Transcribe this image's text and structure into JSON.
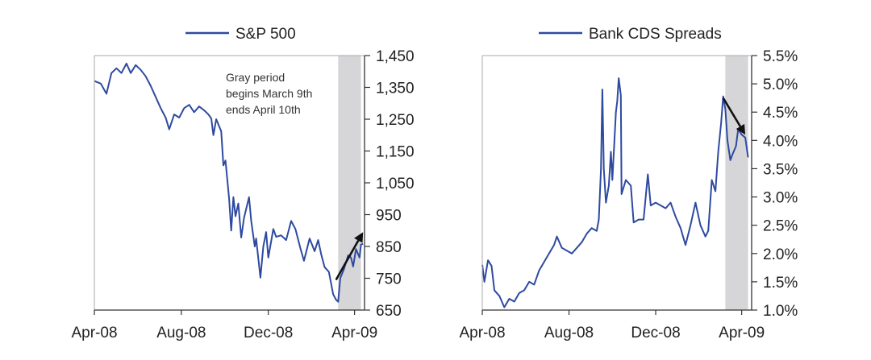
{
  "colors": {
    "line": "#2e4aa0",
    "axis": "#333333",
    "shade": "#d6d6d8",
    "text": "#222222",
    "arrow": "#111111"
  },
  "chart_data": [
    {
      "type": "line",
      "title": "",
      "xlabel": "",
      "ylabel": "",
      "grid": false,
      "legend_position": "top",
      "x_tick_labels": [
        "Apr-08",
        "Aug-08",
        "Dec-08",
        "Apr-09"
      ],
      "y_tick_labels": [
        "1,450",
        "1,350",
        "1,250",
        "1,150",
        "1,050",
        "950",
        "850",
        "750",
        "650"
      ],
      "y_ticks": [
        1450,
        1350,
        1250,
        1150,
        1050,
        950,
        850,
        750,
        650
      ],
      "ylim": [
        650,
        1450
      ],
      "xlim": [
        "2008-04-01",
        "2009-04-15"
      ],
      "shaded_period": {
        "start": "2009-03-09",
        "end": "2009-04-10"
      },
      "annotation": {
        "lines": [
          "Gray period",
          "begins March 9th",
          "ends April 10th"
        ]
      },
      "arrow": {
        "from": {
          "x": "2009-03-06",
          "y": 745
        },
        "to": {
          "x": "2009-04-13",
          "y": 895
        },
        "direction": "up"
      },
      "series": [
        {
          "name": "S&P 500",
          "points": [
            {
              "x": "2008-04-01",
              "y": 1370
            },
            {
              "x": "2008-04-10",
              "y": 1362
            },
            {
              "x": "2008-04-18",
              "y": 1330
            },
            {
              "x": "2008-04-25",
              "y": 1395
            },
            {
              "x": "2008-05-02",
              "y": 1410
            },
            {
              "x": "2008-05-09",
              "y": 1395
            },
            {
              "x": "2008-05-16",
              "y": 1425
            },
            {
              "x": "2008-05-22",
              "y": 1395
            },
            {
              "x": "2008-05-29",
              "y": 1420
            },
            {
              "x": "2008-06-05",
              "y": 1405
            },
            {
              "x": "2008-06-12",
              "y": 1385
            },
            {
              "x": "2008-06-19",
              "y": 1355
            },
            {
              "x": "2008-06-26",
              "y": 1320
            },
            {
              "x": "2008-07-03",
              "y": 1285
            },
            {
              "x": "2008-07-10",
              "y": 1255
            },
            {
              "x": "2008-07-15",
              "y": 1218
            },
            {
              "x": "2008-07-22",
              "y": 1265
            },
            {
              "x": "2008-07-29",
              "y": 1255
            },
            {
              "x": "2008-08-05",
              "y": 1285
            },
            {
              "x": "2008-08-12",
              "y": 1295
            },
            {
              "x": "2008-08-19",
              "y": 1272
            },
            {
              "x": "2008-08-26",
              "y": 1290
            },
            {
              "x": "2008-09-02",
              "y": 1278
            },
            {
              "x": "2008-09-08",
              "y": 1265
            },
            {
              "x": "2008-09-12",
              "y": 1252
            },
            {
              "x": "2008-09-15",
              "y": 1200
            },
            {
              "x": "2008-09-19",
              "y": 1250
            },
            {
              "x": "2008-09-26",
              "y": 1212
            },
            {
              "x": "2008-09-29",
              "y": 1105
            },
            {
              "x": "2008-10-02",
              "y": 1120
            },
            {
              "x": "2008-10-07",
              "y": 1000
            },
            {
              "x": "2008-10-10",
              "y": 900
            },
            {
              "x": "2008-10-13",
              "y": 1005
            },
            {
              "x": "2008-10-16",
              "y": 945
            },
            {
              "x": "2008-10-20",
              "y": 985
            },
            {
              "x": "2008-10-24",
              "y": 878
            },
            {
              "x": "2008-10-28",
              "y": 940
            },
            {
              "x": "2008-11-04",
              "y": 1005
            },
            {
              "x": "2008-11-07",
              "y": 930
            },
            {
              "x": "2008-11-12",
              "y": 850
            },
            {
              "x": "2008-11-14",
              "y": 875
            },
            {
              "x": "2008-11-20",
              "y": 752
            },
            {
              "x": "2008-11-24",
              "y": 850
            },
            {
              "x": "2008-11-28",
              "y": 895
            },
            {
              "x": "2008-12-01",
              "y": 815
            },
            {
              "x": "2008-12-08",
              "y": 905
            },
            {
              "x": "2008-12-12",
              "y": 880
            },
            {
              "x": "2008-12-19",
              "y": 885
            },
            {
              "x": "2008-12-26",
              "y": 870
            },
            {
              "x": "2009-01-02",
              "y": 930
            },
            {
              "x": "2009-01-08",
              "y": 905
            },
            {
              "x": "2009-01-15",
              "y": 845
            },
            {
              "x": "2009-01-20",
              "y": 805
            },
            {
              "x": "2009-01-28",
              "y": 875
            },
            {
              "x": "2009-02-04",
              "y": 835
            },
            {
              "x": "2009-02-09",
              "y": 870
            },
            {
              "x": "2009-02-13",
              "y": 827
            },
            {
              "x": "2009-02-18",
              "y": 785
            },
            {
              "x": "2009-02-24",
              "y": 770
            },
            {
              "x": "2009-03-02",
              "y": 700
            },
            {
              "x": "2009-03-06",
              "y": 683
            },
            {
              "x": "2009-03-09",
              "y": 676
            },
            {
              "x": "2009-03-12",
              "y": 750
            },
            {
              "x": "2009-03-17",
              "y": 778
            },
            {
              "x": "2009-03-23",
              "y": 822
            },
            {
              "x": "2009-03-27",
              "y": 815
            },
            {
              "x": "2009-03-30",
              "y": 787
            },
            {
              "x": "2009-04-03",
              "y": 842
            },
            {
              "x": "2009-04-08",
              "y": 815
            },
            {
              "x": "2009-04-10",
              "y": 856
            },
            {
              "x": "2009-04-13",
              "y": 858
            }
          ]
        }
      ]
    },
    {
      "type": "line",
      "title": "",
      "xlabel": "",
      "ylabel": "",
      "grid": false,
      "legend_position": "top",
      "x_tick_labels": [
        "Apr-08",
        "Aug-08",
        "Dec-08",
        "Apr-09"
      ],
      "y_tick_labels": [
        "5.5%",
        "5.0%",
        "4.5%",
        "4.0%",
        "3.5%",
        "3.0%",
        "2.5%",
        "2.0%",
        "1.5%",
        "1.0%"
      ],
      "y_ticks": [
        5.5,
        5.0,
        4.5,
        4.0,
        3.5,
        3.0,
        2.5,
        2.0,
        1.5,
        1.0
      ],
      "ylim": [
        1.0,
        5.5
      ],
      "xlim": [
        "2008-04-01",
        "2009-04-15"
      ],
      "shaded_period": {
        "start": "2009-03-09",
        "end": "2009-04-10"
      },
      "arrow": {
        "from": {
          "x": "2009-03-06",
          "y": 4.75
        },
        "to": {
          "x": "2009-04-06",
          "y": 4.1
        },
        "direction": "down"
      },
      "series": [
        {
          "name": "Bank CDS Spreads",
          "points": [
            {
              "x": "2008-04-01",
              "y": 1.8
            },
            {
              "x": "2008-04-04",
              "y": 1.5
            },
            {
              "x": "2008-04-09",
              "y": 1.88
            },
            {
              "x": "2008-04-14",
              "y": 1.78
            },
            {
              "x": "2008-04-18",
              "y": 1.35
            },
            {
              "x": "2008-04-25",
              "y": 1.25
            },
            {
              "x": "2008-05-02",
              "y": 1.05
            },
            {
              "x": "2008-05-09",
              "y": 1.2
            },
            {
              "x": "2008-05-16",
              "y": 1.15
            },
            {
              "x": "2008-05-23",
              "y": 1.3
            },
            {
              "x": "2008-05-30",
              "y": 1.35
            },
            {
              "x": "2008-06-06",
              "y": 1.5
            },
            {
              "x": "2008-06-13",
              "y": 1.45
            },
            {
              "x": "2008-06-20",
              "y": 1.7
            },
            {
              "x": "2008-06-27",
              "y": 1.85
            },
            {
              "x": "2008-07-04",
              "y": 2.0
            },
            {
              "x": "2008-07-11",
              "y": 2.15
            },
            {
              "x": "2008-07-15",
              "y": 2.3
            },
            {
              "x": "2008-07-22",
              "y": 2.1
            },
            {
              "x": "2008-07-29",
              "y": 2.05
            },
            {
              "x": "2008-08-05",
              "y": 2.0
            },
            {
              "x": "2008-08-12",
              "y": 2.1
            },
            {
              "x": "2008-08-19",
              "y": 2.2
            },
            {
              "x": "2008-08-26",
              "y": 2.35
            },
            {
              "x": "2008-09-02",
              "y": 2.45
            },
            {
              "x": "2008-09-09",
              "y": 2.4
            },
            {
              "x": "2008-09-12",
              "y": 2.6
            },
            {
              "x": "2008-09-15",
              "y": 3.5
            },
            {
              "x": "2008-09-17",
              "y": 4.9
            },
            {
              "x": "2008-09-19",
              "y": 3.5
            },
            {
              "x": "2008-09-22",
              "y": 2.9
            },
            {
              "x": "2008-09-26",
              "y": 3.2
            },
            {
              "x": "2008-09-29",
              "y": 3.8
            },
            {
              "x": "2008-10-01",
              "y": 3.3
            },
            {
              "x": "2008-10-06",
              "y": 4.5
            },
            {
              "x": "2008-10-08",
              "y": 4.7
            },
            {
              "x": "2008-10-10",
              "y": 5.1
            },
            {
              "x": "2008-10-13",
              "y": 4.8
            },
            {
              "x": "2008-10-14",
              "y": 3.05
            },
            {
              "x": "2008-10-20",
              "y": 3.3
            },
            {
              "x": "2008-10-27",
              "y": 3.2
            },
            {
              "x": "2008-10-31",
              "y": 2.55
            },
            {
              "x": "2008-11-07",
              "y": 2.6
            },
            {
              "x": "2008-11-14",
              "y": 2.6
            },
            {
              "x": "2008-11-20",
              "y": 3.4
            },
            {
              "x": "2008-11-24",
              "y": 2.85
            },
            {
              "x": "2008-12-01",
              "y": 2.9
            },
            {
              "x": "2008-12-08",
              "y": 2.85
            },
            {
              "x": "2008-12-15",
              "y": 2.8
            },
            {
              "x": "2008-12-22",
              "y": 2.9
            },
            {
              "x": "2008-12-29",
              "y": 2.65
            },
            {
              "x": "2009-01-05",
              "y": 2.45
            },
            {
              "x": "2009-01-12",
              "y": 2.15
            },
            {
              "x": "2009-01-19",
              "y": 2.5
            },
            {
              "x": "2009-01-26",
              "y": 2.9
            },
            {
              "x": "2009-02-02",
              "y": 2.5
            },
            {
              "x": "2009-02-09",
              "y": 2.3
            },
            {
              "x": "2009-02-13",
              "y": 2.4
            },
            {
              "x": "2009-02-18",
              "y": 3.3
            },
            {
              "x": "2009-02-23",
              "y": 3.1
            },
            {
              "x": "2009-02-27",
              "y": 3.8
            },
            {
              "x": "2009-03-03",
              "y": 4.3
            },
            {
              "x": "2009-03-06",
              "y": 4.78
            },
            {
              "x": "2009-03-09",
              "y": 4.55
            },
            {
              "x": "2009-03-12",
              "y": 4.0
            },
            {
              "x": "2009-03-16",
              "y": 3.65
            },
            {
              "x": "2009-03-19",
              "y": 3.75
            },
            {
              "x": "2009-03-24",
              "y": 3.9
            },
            {
              "x": "2009-03-27",
              "y": 4.2
            },
            {
              "x": "2009-04-01",
              "y": 4.1
            },
            {
              "x": "2009-04-06",
              "y": 4.05
            },
            {
              "x": "2009-04-10",
              "y": 3.7
            }
          ]
        }
      ]
    }
  ]
}
